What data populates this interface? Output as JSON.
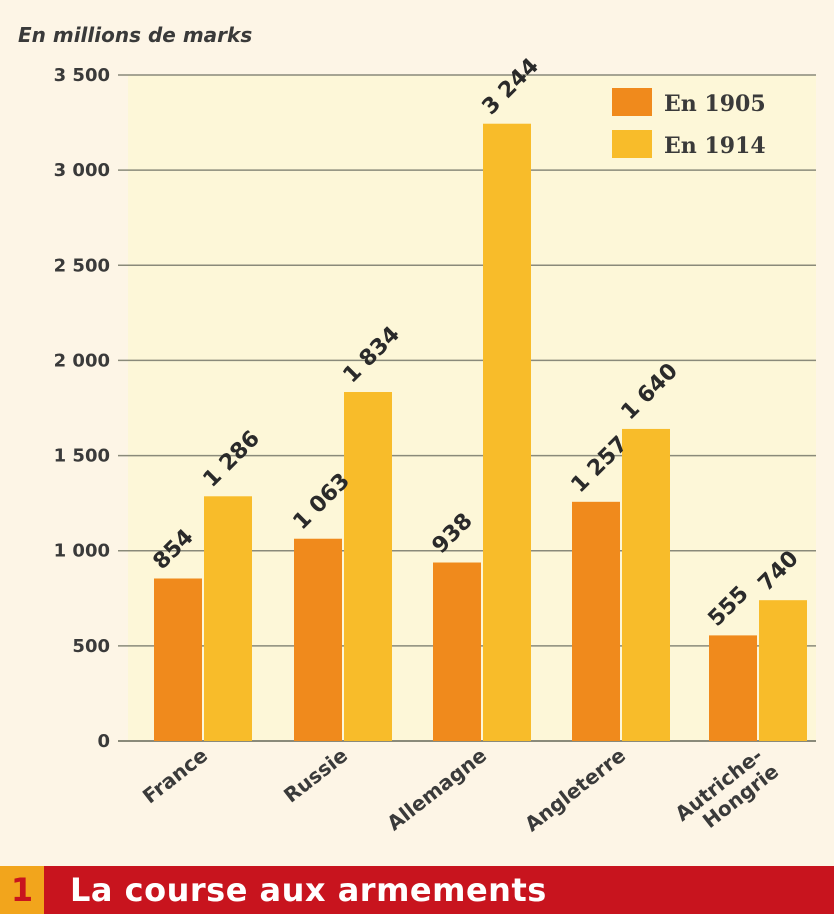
{
  "figure": {
    "number": "1",
    "title": "La course aux armements"
  },
  "colors": {
    "series_1905": "#f08a1c",
    "series_1914": "#f8bc2a",
    "plot_bg": "#fdf7d8",
    "grid": "#8a8a7a",
    "banner": "#c8141e",
    "banner_number_bg": "#f2a51c"
  },
  "chart_data": {
    "type": "bar",
    "unit_label": "En millions de marks",
    "categories": [
      "France",
      "Russie",
      "Allemagne",
      "Angleterre",
      "Autriche-Hongrie"
    ],
    "series": [
      {
        "name": "En 1905",
        "values": [
          854,
          1063,
          938,
          1257,
          555
        ],
        "labels": [
          "854",
          "1 063",
          "938",
          "1 257",
          "555"
        ]
      },
      {
        "name": "En 1914",
        "values": [
          1286,
          1834,
          3244,
          1640,
          740
        ],
        "labels": [
          "1 286",
          "1 834",
          "3 244",
          "1 640",
          "740"
        ]
      }
    ],
    "ylim": [
      0,
      3500
    ],
    "yticks": [
      0,
      500,
      1000,
      1500,
      2000,
      2500,
      3000,
      3500
    ],
    "ytick_labels": [
      "0",
      "500",
      "1 000",
      "1 500",
      "2 000",
      "2 500",
      "3 000",
      "3 500"
    ],
    "grid": true,
    "legend_position": "top-right"
  }
}
